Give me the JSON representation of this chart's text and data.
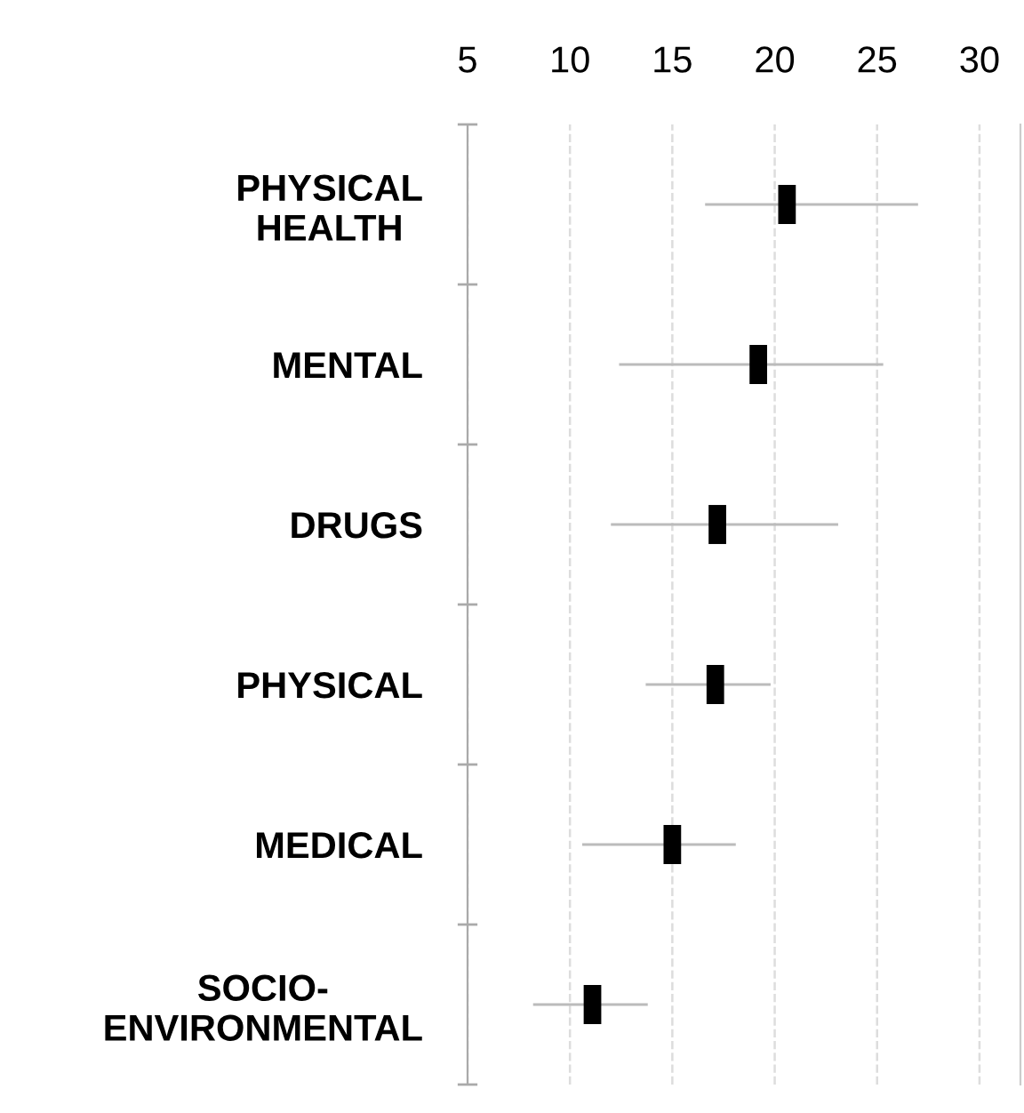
{
  "chart_data": {
    "type": "scatter",
    "orientation": "horizontal",
    "categories": [
      "PHYSICAL\nHEALTH",
      "MENTAL",
      "DRUGS",
      "PHYSICAL",
      "MEDICAL",
      "SOCIO-\nENVIRONMENTAL"
    ],
    "values": [
      20.6,
      19.2,
      17.2,
      17.1,
      15.0,
      11.1
    ],
    "errors": [
      [
        16.6,
        27.0
      ],
      [
        12.4,
        25.3
      ],
      [
        12.0,
        23.1
      ],
      [
        13.7,
        19.8
      ],
      [
        10.6,
        18.1
      ],
      [
        8.2,
        13.8
      ]
    ],
    "color": "#000000",
    "xlim": [
      5,
      32
    ],
    "xticks": [
      5,
      10,
      15,
      20,
      25,
      30
    ],
    "grid": "x"
  }
}
